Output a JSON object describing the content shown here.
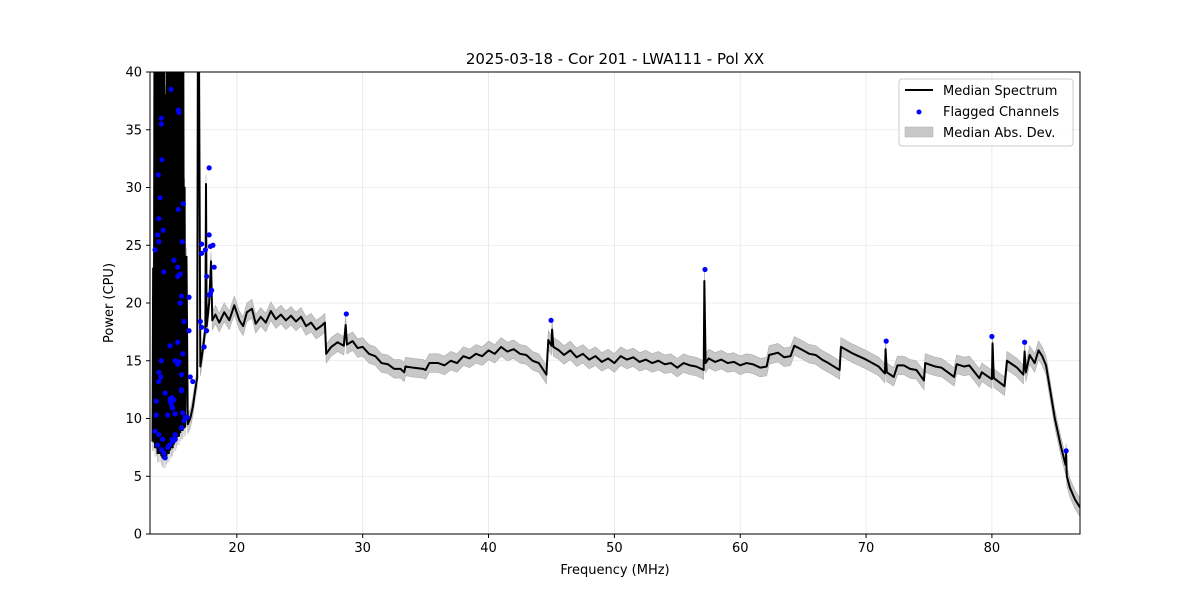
{
  "chart_data": {
    "type": "line",
    "title": "2025-03-18 - Cor 201 - LWA111 - Pol XX",
    "xlabel": "Frequency (MHz)",
    "ylabel": "Power (CPU)",
    "xlim": [
      13.1,
      87.0
    ],
    "ylim": [
      0,
      40
    ],
    "xticks": [
      20,
      30,
      40,
      50,
      60,
      70,
      80
    ],
    "yticks": [
      0,
      5,
      10,
      15,
      20,
      25,
      30,
      35,
      40
    ],
    "grid": true,
    "legend_position": "top-right",
    "legend": [
      "Median Spectrum",
      "Flagged Channels",
      "Median Abs. Dev."
    ],
    "colors": {
      "median": "#000000",
      "flagged": "#0000ff",
      "mad": "#c8c8c8",
      "grid": "#e6e6e6"
    },
    "mad": 0.8,
    "median_spectrum": [
      [
        13.3,
        8
      ],
      [
        13.35,
        23
      ],
      [
        13.4,
        8
      ],
      [
        13.45,
        40
      ],
      [
        13.5,
        7.5
      ],
      [
        13.55,
        40
      ],
      [
        13.6,
        7.5
      ],
      [
        13.65,
        40
      ],
      [
        13.7,
        7
      ],
      [
        13.75,
        40
      ],
      [
        13.8,
        7
      ],
      [
        13.85,
        40
      ],
      [
        13.9,
        7
      ],
      [
        13.95,
        40
      ],
      [
        14.0,
        6.8
      ],
      [
        14.05,
        40
      ],
      [
        14.1,
        6.6
      ],
      [
        14.15,
        40
      ],
      [
        14.2,
        6.5
      ],
      [
        14.25,
        40
      ],
      [
        14.3,
        6.5
      ],
      [
        14.35,
        38
      ],
      [
        14.4,
        6.8
      ],
      [
        14.45,
        40
      ],
      [
        14.5,
        7
      ],
      [
        14.55,
        40
      ],
      [
        14.6,
        7
      ],
      [
        14.65,
        40
      ],
      [
        14.7,
        7.3
      ],
      [
        14.75,
        40
      ],
      [
        14.8,
        7.5
      ],
      [
        14.85,
        40
      ],
      [
        14.9,
        7.5
      ],
      [
        14.95,
        40
      ],
      [
        15.0,
        7.8
      ],
      [
        15.05,
        40
      ],
      [
        15.1,
        8
      ],
      [
        15.15,
        40
      ],
      [
        15.2,
        8.2
      ],
      [
        15.25,
        40
      ],
      [
        15.3,
        8.5
      ],
      [
        15.35,
        40
      ],
      [
        15.4,
        8.5
      ],
      [
        15.45,
        40
      ],
      [
        15.5,
        8.8
      ],
      [
        15.55,
        40
      ],
      [
        15.6,
        9
      ],
      [
        15.65,
        40
      ],
      [
        15.7,
        9
      ],
      [
        15.75,
        40
      ],
      [
        15.8,
        9.2
      ],
      [
        15.85,
        30
      ],
      [
        15.9,
        9.3
      ],
      [
        16.0,
        24
      ],
      [
        16.1,
        9.5
      ],
      [
        16.3,
        10
      ],
      [
        16.5,
        11
      ],
      [
        16.7,
        12.5
      ],
      [
        16.85,
        13.5
      ],
      [
        16.9,
        40
      ],
      [
        17.0,
        40
      ],
      [
        17.1,
        14.5
      ],
      [
        17.3,
        16
      ],
      [
        17.5,
        17.8
      ],
      [
        17.55,
        30.3
      ],
      [
        17.6,
        18
      ],
      [
        17.8,
        20
      ],
      [
        17.95,
        23.6
      ],
      [
        18.05,
        18.5
      ],
      [
        18.3,
        19
      ],
      [
        18.6,
        18.3
      ],
      [
        19.0,
        19.2
      ],
      [
        19.4,
        18.5
      ],
      [
        19.8,
        19.8
      ],
      [
        20.2,
        18.5
      ],
      [
        20.5,
        18.0
      ],
      [
        20.8,
        19.2
      ],
      [
        21.2,
        19.5
      ],
      [
        21.5,
        18.2
      ],
      [
        21.9,
        18.8
      ],
      [
        22.3,
        18.3
      ],
      [
        22.7,
        19.3
      ],
      [
        23.1,
        18.6
      ],
      [
        23.5,
        19.0
      ],
      [
        23.9,
        18.5
      ],
      [
        24.3,
        18.9
      ],
      [
        24.7,
        18.4
      ],
      [
        25.1,
        18.8
      ],
      [
        25.5,
        18.0
      ],
      [
        25.9,
        18.3
      ],
      [
        26.3,
        17.7
      ],
      [
        26.7,
        18.0
      ],
      [
        27.0,
        18.3
      ],
      [
        27.1,
        15.6
      ],
      [
        27.5,
        16.2
      ],
      [
        28.0,
        16.6
      ],
      [
        28.5,
        16.3
      ],
      [
        28.65,
        18.1
      ],
      [
        28.75,
        16.4
      ],
      [
        29.2,
        16.7
      ],
      [
        29.6,
        16.1
      ],
      [
        30.0,
        16.2
      ],
      [
        30.5,
        15.6
      ],
      [
        31.0,
        15.4
      ],
      [
        31.5,
        14.8
      ],
      [
        32.0,
        14.7
      ],
      [
        32.5,
        14.3
      ],
      [
        33.0,
        14.3
      ],
      [
        33.3,
        14.0
      ],
      [
        33.4,
        14.5
      ],
      [
        34.0,
        14.4
      ],
      [
        34.8,
        14.3
      ],
      [
        35.0,
        14.2
      ],
      [
        35.3,
        14.8
      ],
      [
        36.0,
        14.8
      ],
      [
        36.5,
        14.6
      ],
      [
        37.0,
        15.0
      ],
      [
        37.5,
        14.8
      ],
      [
        38.0,
        15.4
      ],
      [
        38.5,
        15.2
      ],
      [
        39.0,
        15.6
      ],
      [
        39.5,
        15.4
      ],
      [
        40.0,
        15.9
      ],
      [
        40.5,
        15.6
      ],
      [
        41.0,
        16.2
      ],
      [
        41.5,
        15.8
      ],
      [
        42.0,
        16.0
      ],
      [
        42.5,
        15.6
      ],
      [
        43.0,
        15.5
      ],
      [
        43.5,
        15.0
      ],
      [
        44.0,
        14.8
      ],
      [
        44.6,
        13.8
      ],
      [
        44.75,
        16.8
      ],
      [
        45.0,
        16.3
      ],
      [
        45.05,
        17.7
      ],
      [
        45.15,
        16.2
      ],
      [
        45.6,
        15.9
      ],
      [
        46.0,
        15.5
      ],
      [
        46.5,
        15.9
      ],
      [
        47.0,
        15.3
      ],
      [
        47.5,
        15.6
      ],
      [
        48.0,
        15.1
      ],
      [
        48.5,
        15.4
      ],
      [
        49.0,
        14.9
      ],
      [
        49.5,
        15.2
      ],
      [
        50.0,
        14.8
      ],
      [
        50.5,
        15.4
      ],
      [
        51.0,
        15.1
      ],
      [
        51.5,
        15.3
      ],
      [
        52.0,
        14.9
      ],
      [
        52.5,
        15.1
      ],
      [
        53.0,
        14.8
      ],
      [
        53.5,
        15.0
      ],
      [
        54.0,
        14.7
      ],
      [
        54.5,
        14.8
      ],
      [
        55.0,
        14.4
      ],
      [
        55.5,
        14.8
      ],
      [
        56.0,
        14.6
      ],
      [
        56.5,
        14.5
      ],
      [
        57.1,
        14.2
      ],
      [
        57.15,
        21.9
      ],
      [
        57.25,
        14.8
      ],
      [
        57.5,
        15.2
      ],
      [
        58.0,
        14.9
      ],
      [
        58.5,
        15.1
      ],
      [
        59.0,
        14.8
      ],
      [
        59.5,
        14.9
      ],
      [
        60.0,
        14.6
      ],
      [
        60.5,
        14.8
      ],
      [
        61.0,
        14.7
      ],
      [
        61.6,
        14.4
      ],
      [
        62.1,
        14.5
      ],
      [
        62.3,
        15.5
      ],
      [
        63.0,
        15.7
      ],
      [
        63.5,
        15.3
      ],
      [
        64.0,
        15.4
      ],
      [
        64.3,
        16.3
      ],
      [
        65.0,
        15.9
      ],
      [
        65.5,
        15.6
      ],
      [
        66.0,
        15.5
      ],
      [
        66.5,
        15.1
      ],
      [
        67.0,
        14.8
      ],
      [
        67.9,
        14.2
      ],
      [
        68.0,
        16.2
      ],
      [
        69.0,
        15.6
      ],
      [
        70.0,
        15.1
      ],
      [
        71.0,
        14.5
      ],
      [
        71.5,
        13.9
      ],
      [
        71.55,
        16.0
      ],
      [
        71.65,
        14.0
      ],
      [
        72.2,
        13.6
      ],
      [
        72.5,
        14.6
      ],
      [
        73.0,
        14.6
      ],
      [
        73.5,
        14.3
      ],
      [
        74.0,
        14.2
      ],
      [
        74.6,
        13.3
      ],
      [
        74.7,
        14.8
      ],
      [
        75.5,
        14.5
      ],
      [
        76.0,
        14.4
      ],
      [
        77.0,
        13.6
      ],
      [
        77.2,
        14.7
      ],
      [
        77.8,
        14.5
      ],
      [
        78.2,
        14.6
      ],
      [
        79.0,
        13.5
      ],
      [
        79.2,
        14.0
      ],
      [
        80.0,
        13.4
      ],
      [
        80.05,
        16.5
      ],
      [
        80.15,
        13.5
      ],
      [
        81.0,
        12.8
      ],
      [
        81.2,
        15.0
      ],
      [
        82.0,
        14.4
      ],
      [
        82.5,
        13.8
      ],
      [
        82.6,
        15.8
      ],
      [
        82.7,
        14.0
      ],
      [
        83.0,
        15.5
      ],
      [
        83.4,
        14.8
      ],
      [
        83.7,
        15.9
      ],
      [
        84.0,
        15.4
      ],
      [
        84.3,
        14.6
      ],
      [
        84.5,
        13.3
      ],
      [
        85.0,
        10.0
      ],
      [
        85.5,
        7.5
      ],
      [
        85.85,
        6.0
      ],
      [
        85.9,
        7.0
      ],
      [
        85.95,
        5.0
      ],
      [
        86.2,
        4.0
      ],
      [
        86.6,
        3.0
      ],
      [
        87.0,
        2.3
      ]
    ],
    "flagged_channels": [
      [
        14.77,
        38.5
      ],
      [
        14.0,
        36.0
      ],
      [
        14.0,
        35.5
      ],
      [
        14.05,
        32.4
      ],
      [
        13.76,
        31.1
      ],
      [
        13.9,
        29.1
      ],
      [
        13.8,
        27.3
      ],
      [
        13.7,
        25.9
      ],
      [
        13.8,
        25.3
      ],
      [
        13.5,
        24.6
      ],
      [
        14.15,
        26.3
      ],
      [
        14.2,
        22.7
      ],
      [
        15.35,
        36.7
      ],
      [
        15.4,
        36.5
      ],
      [
        15.75,
        28.6
      ],
      [
        15.35,
        28.1
      ],
      [
        15.66,
        25.3
      ],
      [
        15.0,
        23.7
      ],
      [
        15.3,
        23.1
      ],
      [
        15.3,
        22.3
      ],
      [
        15.5,
        22.5
      ],
      [
        16.2,
        20.5
      ],
      [
        15.6,
        20.6
      ],
      [
        15.5,
        20.0
      ],
      [
        15.8,
        18.4
      ],
      [
        16.2,
        17.6
      ],
      [
        14.7,
        16.3
      ],
      [
        15.3,
        16.6
      ],
      [
        15.7,
        15.6
      ],
      [
        14.0,
        15.0
      ],
      [
        15.1,
        15.0
      ],
      [
        15.4,
        14.9
      ],
      [
        15.3,
        14.7
      ],
      [
        15.6,
        13.8
      ],
      [
        13.8,
        14.0
      ],
      [
        13.96,
        13.6
      ],
      [
        13.8,
        13.2
      ],
      [
        16.3,
        13.6
      ],
      [
        16.5,
        13.2
      ],
      [
        14.3,
        12.2
      ],
      [
        15.6,
        12.5
      ],
      [
        15.6,
        12.4
      ],
      [
        13.6,
        11.5
      ],
      [
        14.7,
        11.7
      ],
      [
        14.85,
        11.8
      ],
      [
        15.0,
        11.6
      ],
      [
        14.7,
        11.5
      ],
      [
        14.8,
        11.2
      ],
      [
        14.9,
        10.9
      ],
      [
        13.6,
        10.3
      ],
      [
        14.5,
        10.3
      ],
      [
        15.1,
        10.4
      ],
      [
        15.7,
        10.5
      ],
      [
        15.9,
        10.1
      ],
      [
        16.05,
        10.1
      ],
      [
        15.8,
        9.8
      ],
      [
        15.6,
        9.2
      ],
      [
        13.5,
        8.9
      ],
      [
        13.8,
        8.6
      ],
      [
        14.1,
        8.2
      ],
      [
        13.7,
        7.7
      ],
      [
        14.85,
        8.2
      ],
      [
        15.1,
        8.6
      ],
      [
        14.9,
        8.0
      ],
      [
        14.0,
        7.3
      ],
      [
        14.2,
        7.0
      ],
      [
        14.3,
        6.6
      ],
      [
        14.5,
        7.5
      ],
      [
        14.65,
        7.7
      ],
      [
        15.1,
        8.2
      ],
      [
        17.8,
        31.7
      ],
      [
        17.8,
        25.9
      ],
      [
        17.2,
        25.1
      ],
      [
        17.2,
        24.3
      ],
      [
        17.5,
        24.6
      ],
      [
        17.9,
        24.9
      ],
      [
        18.1,
        25.0
      ],
      [
        18.2,
        23.1
      ],
      [
        17.6,
        22.3
      ],
      [
        18.0,
        21.1
      ],
      [
        17.9,
        20.8
      ],
      [
        17.8,
        20.7
      ],
      [
        17.1,
        18.4
      ],
      [
        17.2,
        17.9
      ],
      [
        17.6,
        17.6
      ],
      [
        17.4,
        16.2
      ],
      [
        28.7,
        19.05
      ],
      [
        44.97,
        18.5
      ],
      [
        57.2,
        22.9
      ],
      [
        71.6,
        16.7
      ],
      [
        80.0,
        17.1
      ],
      [
        82.6,
        16.6
      ],
      [
        85.9,
        7.2
      ]
    ]
  }
}
